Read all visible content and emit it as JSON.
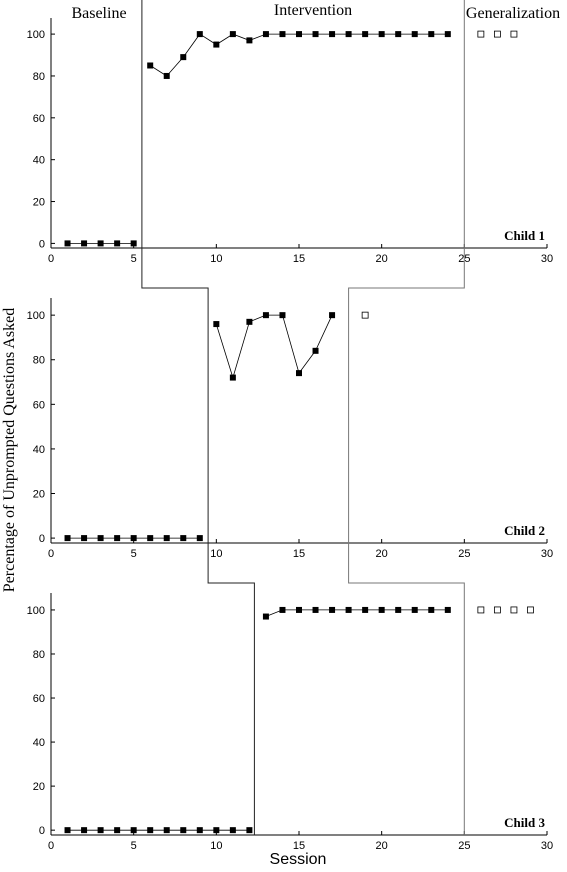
{
  "phase_labels": {
    "baseline": "Baseline",
    "intervention": "Intervention",
    "generalization": "Generalization"
  },
  "xlabel": "Session",
  "ylabel": "Percentage of Unprompted Questions Asked",
  "chart_data": [
    {
      "type": "line",
      "panel": "Child 1",
      "xlim": [
        0,
        30
      ],
      "ylim": [
        0,
        100
      ],
      "x_ticks": [
        0,
        5,
        10,
        15,
        20,
        25,
        30
      ],
      "y_ticks": [
        0,
        20,
        40,
        60,
        80,
        100
      ],
      "phase_change_after": [
        5.5,
        25
      ],
      "series": [
        {
          "phase": "baseline",
          "marker": "filled-square",
          "connected": true,
          "points": [
            [
              1,
              0
            ],
            [
              2,
              0
            ],
            [
              3,
              0
            ],
            [
              4,
              0
            ],
            [
              5,
              0
            ]
          ]
        },
        {
          "phase": "intervention",
          "marker": "filled-square",
          "connected": true,
          "points": [
            [
              6,
              85
            ],
            [
              7,
              80
            ],
            [
              8,
              89
            ],
            [
              9,
              100
            ],
            [
              10,
              95
            ],
            [
              11,
              100
            ],
            [
              12,
              97
            ],
            [
              13,
              100
            ],
            [
              14,
              100
            ],
            [
              15,
              100
            ],
            [
              16,
              100
            ],
            [
              17,
              100
            ],
            [
              18,
              100
            ],
            [
              19,
              100
            ],
            [
              20,
              100
            ],
            [
              21,
              100
            ],
            [
              22,
              100
            ],
            [
              23,
              100
            ],
            [
              24,
              100
            ]
          ]
        },
        {
          "phase": "generalization",
          "marker": "open-square",
          "connected": false,
          "points": [
            [
              26,
              100
            ],
            [
              27,
              100
            ],
            [
              28,
              100
            ]
          ]
        }
      ]
    },
    {
      "type": "line",
      "panel": "Child 2",
      "xlim": [
        0,
        30
      ],
      "ylim": [
        0,
        100
      ],
      "x_ticks": [
        0,
        5,
        10,
        15,
        20,
        25,
        30
      ],
      "y_ticks": [
        0,
        20,
        40,
        60,
        80,
        100
      ],
      "phase_change_after": [
        9.5,
        18
      ],
      "series": [
        {
          "phase": "baseline",
          "marker": "filled-square",
          "connected": true,
          "points": [
            [
              1,
              0
            ],
            [
              2,
              0
            ],
            [
              3,
              0
            ],
            [
              4,
              0
            ],
            [
              5,
              0
            ],
            [
              6,
              0
            ],
            [
              7,
              0
            ],
            [
              8,
              0
            ],
            [
              9,
              0
            ]
          ]
        },
        {
          "phase": "intervention",
          "marker": "filled-square",
          "connected": true,
          "points": [
            [
              10,
              96
            ],
            [
              11,
              72
            ],
            [
              12,
              97
            ],
            [
              13,
              100
            ],
            [
              14,
              100
            ],
            [
              15,
              74
            ],
            [
              16,
              84
            ],
            [
              17,
              100
            ]
          ]
        },
        {
          "phase": "generalization",
          "marker": "open-square",
          "connected": false,
          "points": [
            [
              19,
              100
            ]
          ]
        }
      ]
    },
    {
      "type": "line",
      "panel": "Child 3",
      "xlim": [
        0,
        30
      ],
      "ylim": [
        0,
        100
      ],
      "x_ticks": [
        0,
        5,
        10,
        15,
        20,
        25,
        30
      ],
      "y_ticks": [
        0,
        20,
        40,
        60,
        80,
        100
      ],
      "phase_change_after": [
        12.3,
        25
      ],
      "series": [
        {
          "phase": "baseline",
          "marker": "filled-square",
          "connected": true,
          "points": [
            [
              1,
              0
            ],
            [
              2,
              0
            ],
            [
              3,
              0
            ],
            [
              4,
              0
            ],
            [
              5,
              0
            ],
            [
              6,
              0
            ],
            [
              7,
              0
            ],
            [
              8,
              0
            ],
            [
              9,
              0
            ],
            [
              10,
              0
            ],
            [
              11,
              0
            ],
            [
              12,
              0
            ]
          ]
        },
        {
          "phase": "intervention",
          "marker": "filled-square",
          "connected": true,
          "points": [
            [
              13,
              97
            ],
            [
              14,
              100
            ],
            [
              15,
              100
            ],
            [
              16,
              100
            ],
            [
              17,
              100
            ],
            [
              18,
              100
            ],
            [
              19,
              100
            ],
            [
              20,
              100
            ],
            [
              21,
              100
            ],
            [
              22,
              100
            ],
            [
              23,
              100
            ],
            [
              24,
              100
            ]
          ]
        },
        {
          "phase": "generalization",
          "marker": "open-square",
          "connected": false,
          "points": [
            [
              26,
              100
            ],
            [
              27,
              100
            ],
            [
              28,
              100
            ],
            [
              29,
              100
            ]
          ]
        }
      ]
    }
  ]
}
